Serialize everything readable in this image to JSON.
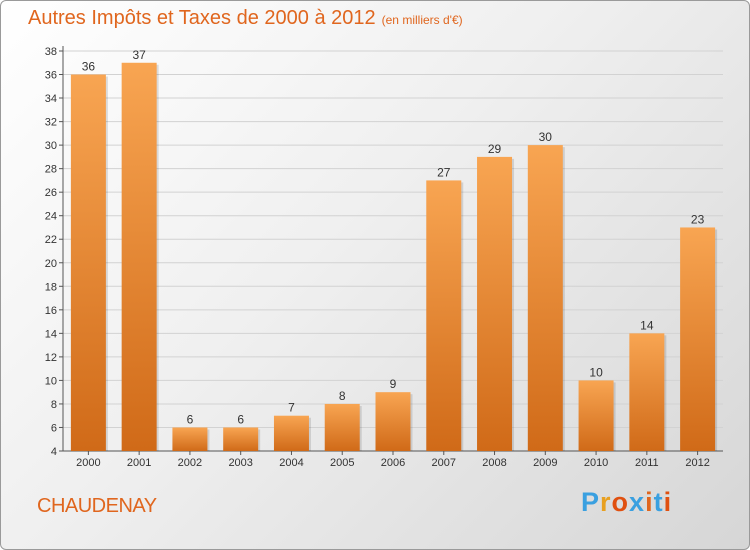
{
  "header": {
    "title": "Autres Impôts et Taxes de 2000 à 2012",
    "unit": "(en milliers d'€)"
  },
  "footer": {
    "commune": "CHAUDENAY",
    "brand": "Proxiti"
  },
  "colors": {
    "accent": "#e0661e",
    "bar_top": "#f8a552",
    "bar_bottom": "#d06a18",
    "brand_letters": [
      "#3aa0e0",
      "#e8a020",
      "#e05010",
      "#3aa0e0",
      "#e0661e",
      "#3aa0e0",
      "#e05010"
    ]
  },
  "chart_data": {
    "type": "bar",
    "title": "Autres Impôts et Taxes de 2000 à 2012",
    "xlabel": "",
    "ylabel": "",
    "categories": [
      "2000",
      "2001",
      "2002",
      "2003",
      "2004",
      "2005",
      "2006",
      "2007",
      "2008",
      "2009",
      "2010",
      "2011",
      "2012"
    ],
    "values": [
      36,
      37,
      6,
      6,
      7,
      8,
      9,
      27,
      29,
      30,
      10,
      14,
      23
    ],
    "ylim": [
      4,
      38
    ],
    "yticks": [
      4,
      6,
      8,
      10,
      12,
      14,
      16,
      18,
      20,
      22,
      24,
      26,
      28,
      30,
      32,
      34,
      36,
      38
    ],
    "grid": true,
    "legend": "none"
  }
}
